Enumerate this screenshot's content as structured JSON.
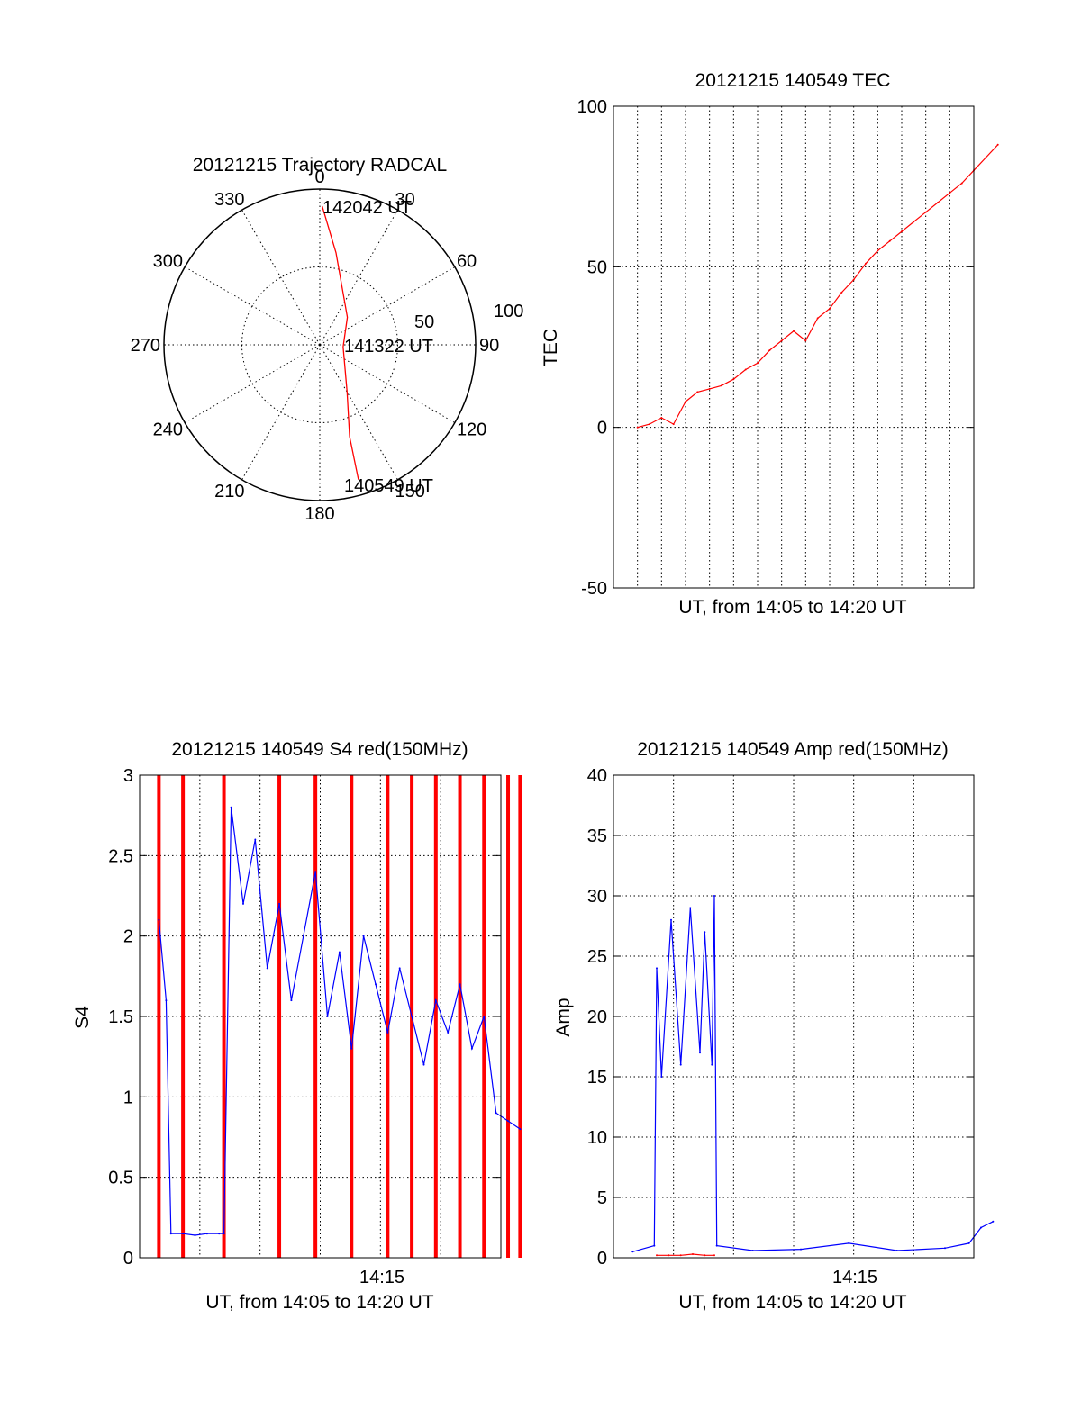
{
  "chart_data": [
    {
      "type": "polar",
      "title": "20121215 Trajectory RADCAL",
      "azimuth_labels": [
        "0",
        "30",
        "60",
        "90",
        "120",
        "150",
        "180",
        "210",
        "240",
        "270",
        "300",
        "330"
      ],
      "radial_labels": [
        "50",
        "100"
      ],
      "rlim": [
        0,
        100
      ],
      "grid": true,
      "annotations": [
        "142042 UT",
        "141322 UT",
        "140549 UT"
      ],
      "trajectory": {
        "color": "#ff0000",
        "points": [
          {
            "az": 1,
            "r": 89
          },
          {
            "az": 10,
            "r": 60
          },
          {
            "az": 45,
            "r": 25
          },
          {
            "az": 95,
            "r": 15
          },
          {
            "az": 150,
            "r": 35
          },
          {
            "az": 162,
            "r": 62
          },
          {
            "az": 164,
            "r": 90
          }
        ]
      }
    },
    {
      "type": "line",
      "title": "20121215 140549 TEC",
      "xlabel": "UT, from 14:05 to 14:20 UT",
      "ylabel": "TEC",
      "ylim": [
        -50,
        100
      ],
      "yticks": [
        "100",
        "50",
        "0",
        "-50"
      ],
      "grid": true,
      "series": [
        {
          "color": "#ff0000",
          "x": [
            0,
            0.5,
            1,
            1.5,
            2,
            2.5,
            3,
            3.5,
            4,
            4.5,
            5,
            5.5,
            6,
            6.5,
            7,
            7.5,
            8,
            8.5,
            9,
            9.5,
            10,
            10.5,
            11,
            11.5,
            12,
            12.5,
            13,
            13.5,
            14,
            14.5,
            15
          ],
          "y": [
            0,
            1,
            3,
            1,
            8,
            11,
            12,
            13,
            15,
            18,
            20,
            24,
            27,
            30,
            27,
            34,
            37,
            42,
            46,
            51,
            55,
            58,
            61,
            64,
            67,
            70,
            73,
            76,
            80,
            84,
            88
          ]
        }
      ]
    },
    {
      "type": "line",
      "title": "20121215 140549 S4 red(150MHz)",
      "xlabel": "UT, from 14:05 to 14:20 UT",
      "ylabel": "S4",
      "ylim": [
        0,
        3
      ],
      "yticks": [
        "3",
        "2.5",
        "2",
        "1.5",
        "1",
        "0.5",
        "0"
      ],
      "xticks": [
        "14:15"
      ],
      "grid": true,
      "series": [
        {
          "color": "#ff0000",
          "x": [
            0,
            1,
            2.7,
            5,
            6.5,
            8,
            9.5,
            10.5,
            11.5,
            12.5,
            13.5,
            14.5,
            15
          ],
          "y": [
            3,
            3,
            3,
            3,
            3,
            3,
            3,
            3,
            3,
            3,
            3,
            3,
            3
          ]
        },
        {
          "color": "#0000ff",
          "x": [
            0,
            0.3,
            0.5,
            1,
            1.5,
            2,
            2.5,
            2.7,
            3,
            3.5,
            4,
            4.5,
            5,
            5.5,
            6,
            6.5,
            7,
            7.5,
            8,
            8.5,
            9,
            9.5,
            10,
            10.5,
            11,
            11.5,
            12,
            12.5,
            13,
            13.5,
            14,
            14.5,
            15
          ],
          "y": [
            2.1,
            1.6,
            0.15,
            0.15,
            0.14,
            0.15,
            0.15,
            0.15,
            2.8,
            2.2,
            2.6,
            1.8,
            2.2,
            1.6,
            2.0,
            2.4,
            1.5,
            1.9,
            1.3,
            2.0,
            1.7,
            1.4,
            1.8,
            1.5,
            1.2,
            1.6,
            1.4,
            1.7,
            1.3,
            1.5,
            0.9,
            0.85,
            0.8
          ]
        }
      ]
    },
    {
      "type": "line",
      "title": "20121215 140549 Amp red(150MHz)",
      "xlabel": "UT, from 14:05 to 14:20 UT",
      "ylabel": "Amp",
      "ylim": [
        0,
        40
      ],
      "yticks": [
        "40",
        "35",
        "30",
        "25",
        "20",
        "15",
        "10",
        "5",
        "0"
      ],
      "xticks": [
        "14:15"
      ],
      "grid": true,
      "series": [
        {
          "color": "#0000ff",
          "x": [
            0,
            0.9,
            1,
            1.2,
            1.6,
            2.0,
            2.4,
            2.8,
            3.0,
            3.3,
            3.4,
            3.5,
            5,
            7,
            9,
            11,
            13,
            14,
            14.5,
            15
          ],
          "y": [
            0.5,
            1,
            24,
            15,
            28,
            16,
            29,
            17,
            27,
            16,
            30,
            1,
            0.6,
            0.7,
            1.2,
            0.6,
            0.8,
            1.2,
            2.5,
            3
          ]
        },
        {
          "color": "#ff0000",
          "x": [
            1.0,
            1.5,
            2.0,
            2.5,
            3.0,
            3.4
          ],
          "y": [
            0.2,
            0.2,
            0.2,
            0.3,
            0.2,
            0.2
          ]
        }
      ]
    }
  ]
}
